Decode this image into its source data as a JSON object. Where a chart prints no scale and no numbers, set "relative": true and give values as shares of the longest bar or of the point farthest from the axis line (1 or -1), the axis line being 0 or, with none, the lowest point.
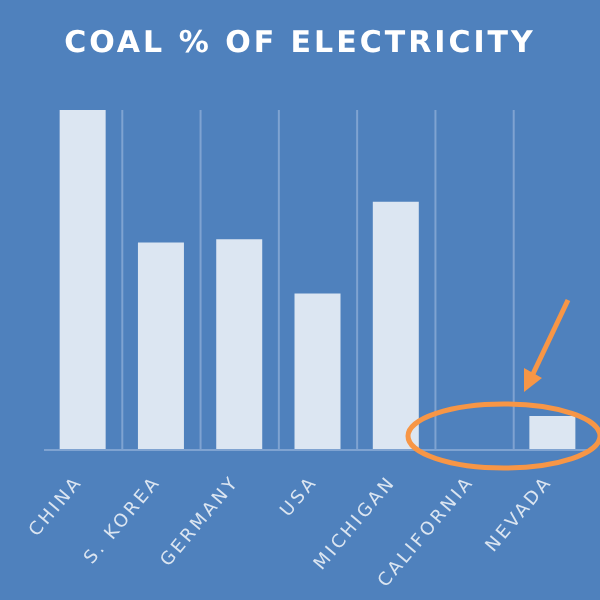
{
  "chart_data": {
    "type": "bar",
    "title": "COAL % OF ELECTRICITY",
    "relative": true,
    "categories": [
      "CHINA",
      "S. KOREA",
      "GERMANY",
      "USA",
      "MICHIGAN",
      "CALIFORNIA",
      "NEVADA"
    ],
    "values": [
      1,
      0.61,
      0.62,
      0.46,
      0.73,
      0,
      0.1
    ],
    "color": "#dce6f2",
    "grid": "x"
  }
}
